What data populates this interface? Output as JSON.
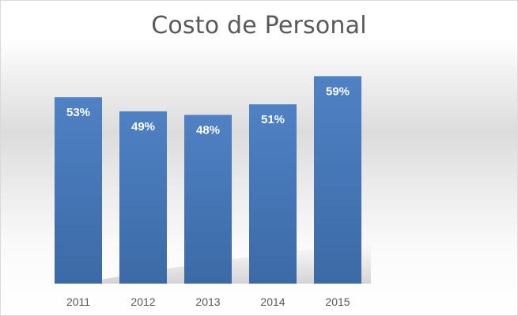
{
  "chart_data": {
    "type": "bar",
    "title": "Costo de Personal",
    "categories": [
      "2011",
      "2012",
      "2013",
      "2014",
      "2015"
    ],
    "values": [
      53,
      49,
      48,
      51,
      59
    ],
    "data_labels": [
      "53%",
      "49%",
      "48%",
      "51%",
      "59%"
    ],
    "unit": "%",
    "xlabel": "",
    "ylabel": "",
    "ylim": [
      0,
      60
    ],
    "grid": false,
    "legend": "none",
    "bar_color": "#4a7ab9"
  }
}
